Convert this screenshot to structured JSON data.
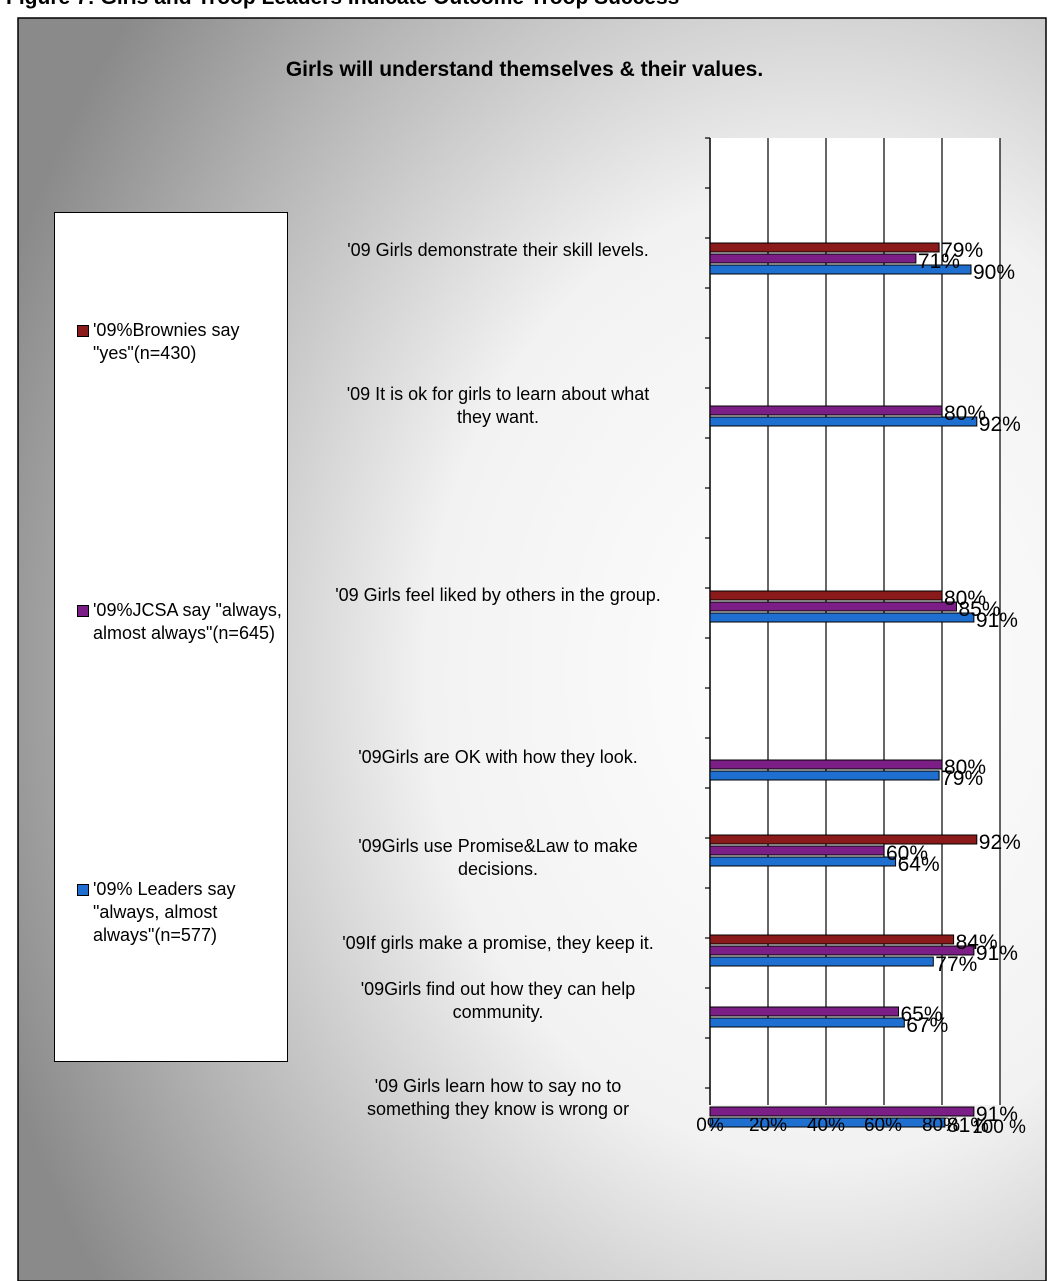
{
  "header": {
    "text": "Figure 7: Girls and Troop Leaders Indicate Outcome Troop Success"
  },
  "colors": {
    "brownies": "#8b1a1a",
    "jcsa": "#7b1f86",
    "leaders": "#1e6fd0"
  },
  "chart_data": {
    "type": "bar",
    "orientation": "horizontal",
    "title": "Girls will understand themselves & their values.",
    "xlabel": "",
    "ylabel": "",
    "xlim": [
      0,
      100
    ],
    "grid": true,
    "legend_position": "left",
    "x_ticks": [
      "0%",
      "20%",
      "40%",
      "60%",
      "80%",
      "100 %"
    ],
    "categories": [
      "'09 Girls demonstrate their skill levels.",
      "'09 It is ok for girls to learn about what they want.",
      "'09 Girls feel liked by others in the group.",
      "'09Girls are OK with how they look.",
      "'09Girls use Promise&Law to make decisions.",
      "'09If girls make a promise, they keep it.",
      "'09Girls find out how they can help community.",
      "'09 Girls learn how to say no to something they know is wrong or"
    ],
    "series": [
      {
        "name": "'09%Brownies say \"yes\"(n=430)",
        "color": "#8b1a1a",
        "values": [
          79,
          null,
          80,
          null,
          92,
          84,
          null,
          null
        ],
        "labels": [
          "79%",
          "",
          "80%",
          "",
          "92%",
          "84%",
          "",
          ""
        ]
      },
      {
        "name": "'09%JCSA say \"always, almost always\"(n=645)",
        "color": "#7b1f86",
        "values": [
          71,
          80,
          85,
          80,
          60,
          91,
          65,
          91
        ],
        "labels": [
          "71%",
          "80%",
          "85%",
          "80%",
          "60%",
          "91%",
          "65%",
          "91%"
        ]
      },
      {
        "name": "'09% Leaders say \"always, almost always\"(n=577)",
        "color": "#1e6fd0",
        "values": [
          90,
          92,
          91,
          79,
          64,
          77,
          67,
          81
        ],
        "labels": [
          "90%",
          "92%",
          "91%",
          "79%",
          "64%",
          "77%",
          "67%",
          "81%"
        ]
      }
    ]
  }
}
